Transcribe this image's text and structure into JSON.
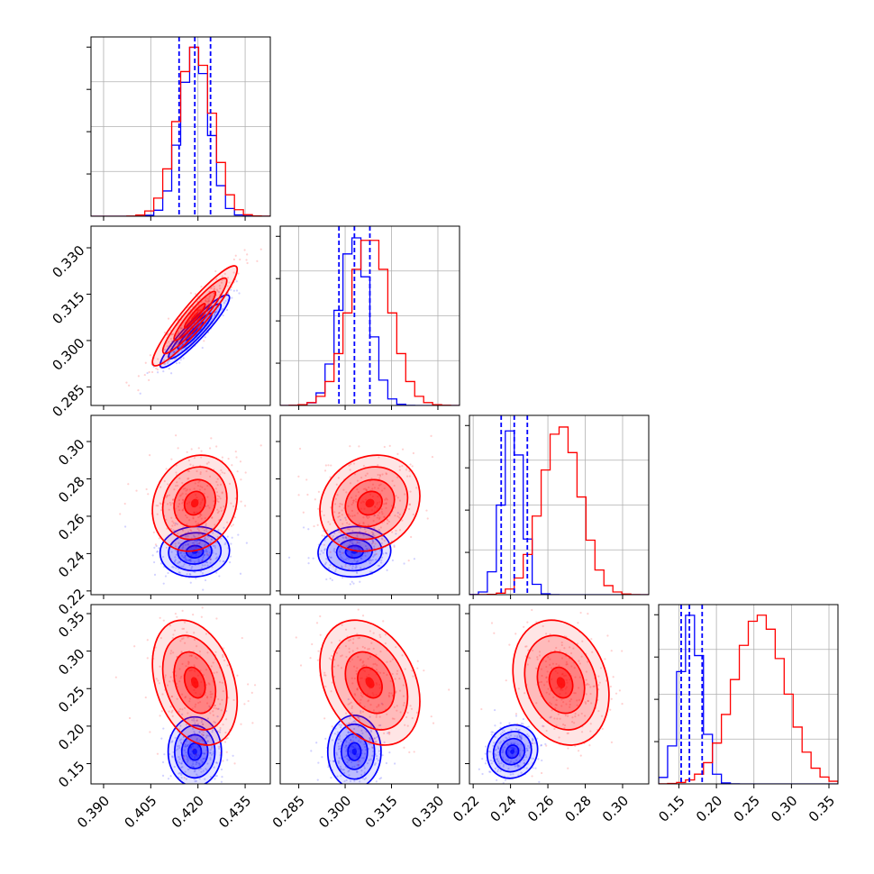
{
  "chart_data": {
    "type": "corner",
    "params": [
      {
        "id": "p0",
        "ticks": [
          "0.390",
          "0.405",
          "0.420",
          "0.435"
        ],
        "tick_values": [
          0.39,
          0.405,
          0.42,
          0.435
        ],
        "range": [
          0.386,
          0.443
        ]
      },
      {
        "id": "p1",
        "ticks": [
          "0.285",
          "0.300",
          "0.315",
          "0.330"
        ],
        "tick_values": [
          0.285,
          0.3,
          0.315,
          0.33
        ],
        "range": [
          0.279,
          0.337
        ]
      },
      {
        "id": "p2",
        "ticks": [
          "0.22",
          "0.24",
          "0.26",
          "0.28",
          "0.30"
        ],
        "tick_values": [
          0.22,
          0.24,
          0.26,
          0.28,
          0.3
        ],
        "range": [
          0.218,
          0.314
        ]
      },
      {
        "id": "p3",
        "ticks": [
          "0.15",
          "0.20",
          "0.25",
          "0.30",
          "0.35"
        ],
        "tick_values": [
          0.15,
          0.2,
          0.25,
          0.3,
          0.35
        ],
        "range": [
          0.123,
          0.362
        ]
      }
    ],
    "colors": {
      "series_a": "#0000ff",
      "series_b": "#ff0000"
    },
    "grid": true,
    "series": [
      {
        "color_key": "series_a",
        "mean": [
          0.419,
          0.303,
          0.241,
          0.166
        ],
        "sd": [
          0.0045,
          0.0048,
          0.0055,
          0.0145
        ],
        "corr": [
          [
            1,
            0.93,
            0.05,
            0.0
          ],
          [
            0.93,
            1,
            0.05,
            0.0
          ],
          [
            0.05,
            0.05,
            1,
            0.1
          ],
          [
            0.0,
            0.0,
            0.1,
            1
          ]
        ]
      },
      {
        "color_key": "series_b",
        "mean": [
          0.419,
          0.308,
          0.267,
          0.258
        ],
        "sd": [
          0.0055,
          0.0066,
          0.0105,
          0.034
        ],
        "corr": [
          [
            1,
            0.93,
            0.15,
            -0.3
          ],
          [
            0.93,
            1,
            0.15,
            -0.3
          ],
          [
            0.15,
            0.15,
            1,
            -0.2
          ],
          [
            -0.3,
            -0.3,
            -0.2,
            1
          ]
        ]
      }
    ],
    "quantiles": [
      [
        0.414,
        0.419,
        0.424
      ],
      [
        0.298,
        0.303,
        0.308
      ],
      [
        0.235,
        0.242,
        0.249
      ],
      [
        0.153,
        0.164,
        0.181
      ]
    ],
    "quantile_color_key": "series_a"
  }
}
